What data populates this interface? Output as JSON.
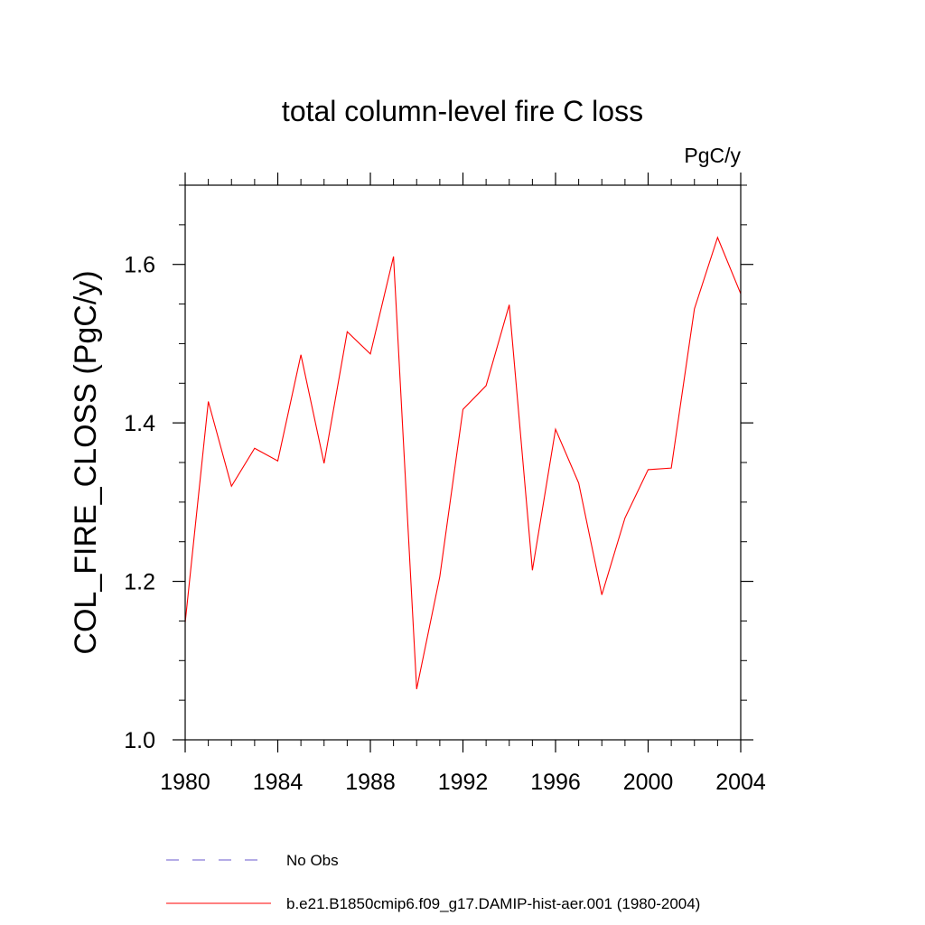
{
  "chart_data": {
    "type": "line",
    "title": "total column-level fire C loss",
    "units": "PgC/y",
    "xlabel": "",
    "ylabel": "COL_FIRE_CLOSS  (PgC/y)",
    "xlim": [
      1980,
      2004
    ],
    "ylim": [
      1.0,
      1.7
    ],
    "x_ticks": [
      1980,
      1984,
      1988,
      1992,
      1996,
      2000,
      2004
    ],
    "x_tick_labels": [
      "1980",
      "1984",
      "1988",
      "1992",
      "1996",
      "2000",
      "2004"
    ],
    "y_ticks": [
      1.0,
      1.2,
      1.4,
      1.6
    ],
    "y_tick_labels": [
      "1.0",
      "1.2",
      "1.4",
      "1.6"
    ],
    "y_minor_step": 0.05,
    "x_minor_step": 1,
    "grid": false,
    "legend_position": "bottom",
    "x": [
      1980,
      1981,
      1982,
      1983,
      1984,
      1985,
      1986,
      1987,
      1988,
      1989,
      1990,
      1991,
      1992,
      1993,
      1994,
      1995,
      1996,
      1997,
      1998,
      1999,
      2000,
      2001,
      2002,
      2003,
      2004
    ],
    "series": [
      {
        "name": "b.e21.B1850cmip6.f09_g17.DAMIP-hist-aer.001 (1980-2004)",
        "color": "#ff0000",
        "dash": "solid",
        "values": [
          1.148,
          1.427,
          1.32,
          1.368,
          1.352,
          1.486,
          1.349,
          1.515,
          1.487,
          1.61,
          1.064,
          1.206,
          1.417,
          1.447,
          1.549,
          1.214,
          1.392,
          1.324,
          1.183,
          1.28,
          1.341,
          1.343,
          1.544,
          1.634,
          1.563
        ]
      }
    ],
    "legend": [
      {
        "label": "No Obs",
        "color": "#6a5acd",
        "dash": "dashed"
      },
      {
        "label": "b.e21.B1850cmip6.f09_g17.DAMIP-hist-aer.001 (1980-2004)",
        "color": "#ff0000",
        "dash": "solid"
      }
    ]
  }
}
